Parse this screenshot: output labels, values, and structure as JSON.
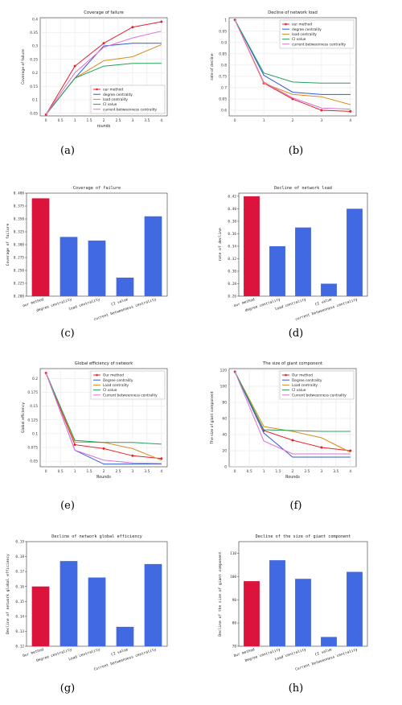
{
  "captions": [
    "(a)",
    "(b)",
    "(c)",
    "(d)",
    "(e)",
    "(f)",
    "(g)",
    "(h)"
  ],
  "chart_data": [
    {
      "id": "a",
      "type": "line",
      "title": "Coverage of failure",
      "xlabel": "rounds",
      "ylabel": "Coverage of failure",
      "x": [
        0,
        1,
        2,
        3,
        4
      ],
      "xticks": [
        "0",
        "0.5",
        "1",
        "1.5",
        "2",
        "2.5",
        "3",
        "3.5",
        "4"
      ],
      "xlim": [
        -0.2,
        4.2
      ],
      "yticks": [
        "0.05",
        "0.1",
        "0.15",
        "0.2",
        "0.25",
        "0.3",
        "0.35",
        "0.4"
      ],
      "ylim": [
        0.04,
        0.405
      ],
      "grid": true,
      "legend_position": "lower-right",
      "series": [
        {
          "name": "our method",
          "values": [
            0.045,
            0.225,
            0.31,
            0.37,
            0.39
          ],
          "color": "#e8222b",
          "marker": true
        },
        {
          "name": "degree centrality",
          "values": [
            0.045,
            0.18,
            0.3,
            0.31,
            0.31
          ],
          "color": "#2e5bd6",
          "marker": false
        },
        {
          "name": "load centrality",
          "values": [
            0.045,
            0.18,
            0.245,
            0.26,
            0.305
          ],
          "color": "#d98c1a",
          "marker": false
        },
        {
          "name": "CI value",
          "values": [
            0.045,
            0.18,
            0.225,
            0.235,
            0.235
          ],
          "color": "#23a05b",
          "marker": false
        },
        {
          "name": "current betweenness centrality",
          "values": [
            0.045,
            0.2,
            0.295,
            0.33,
            0.355
          ],
          "color": "#e06fd6",
          "marker": false
        }
      ]
    },
    {
      "id": "b",
      "type": "line",
      "title": "Decline of network load",
      "xlabel": "",
      "ylabel": "rate of decline",
      "x": [
        0,
        1,
        2,
        3,
        4
      ],
      "xticks": [
        "0",
        "1",
        "2",
        "3",
        "4"
      ],
      "xlim": [
        -0.2,
        4.2
      ],
      "yticks": [
        "0.6",
        "0.65",
        "0.7",
        "0.75",
        "0.8",
        "0.85",
        "0.9",
        "0.95",
        "1"
      ],
      "ylim": [
        0.575,
        1.01
      ],
      "grid": true,
      "legend_position": "top-right",
      "series": [
        {
          "name": "our method",
          "values": [
            1.0,
            0.72,
            0.65,
            0.6,
            0.595
          ],
          "color": "#e8222b",
          "marker": true
        },
        {
          "name": "degree centrality",
          "values": [
            1.0,
            0.755,
            0.68,
            0.67,
            0.67
          ],
          "color": "#2e5bd6",
          "marker": false
        },
        {
          "name": "load centrality",
          "values": [
            1.0,
            0.72,
            0.67,
            0.66,
            0.625
          ],
          "color": "#d98c1a",
          "marker": false
        },
        {
          "name": "CI value",
          "values": [
            1.0,
            0.765,
            0.725,
            0.72,
            0.72
          ],
          "color": "#23a05b",
          "marker": false
        },
        {
          "name": "current betweenness centrality",
          "values": [
            1.0,
            0.725,
            0.655,
            0.61,
            0.605
          ],
          "color": "#e06fd6",
          "marker": false
        }
      ]
    },
    {
      "id": "c",
      "type": "bar",
      "title": "Coverage of failure",
      "xlabel": "",
      "ylabel": "Coverage of failure",
      "categories": [
        "our method",
        "degree centrality",
        "load centrality",
        "CI value",
        "current betweenness centrality"
      ],
      "values": [
        0.39,
        0.315,
        0.308,
        0.236,
        0.355
      ],
      "colors": [
        "#dc143c",
        "#4169e1",
        "#4169e1",
        "#4169e1",
        "#4169e1"
      ],
      "yticks": [
        "0.200",
        "0.225",
        "0.250",
        "0.275",
        "0.300",
        "0.325",
        "0.350",
        "0.375",
        "0.400"
      ],
      "ylim": [
        0.2,
        0.4
      ],
      "grid": false
    },
    {
      "id": "d",
      "type": "bar",
      "title": "Decline of network load",
      "xlabel": "",
      "ylabel": "rate of decline",
      "categories": [
        "our method",
        "degree centrality",
        "load centrality",
        "CI value",
        "current betweenness centrality"
      ],
      "values": [
        0.42,
        0.34,
        0.37,
        0.28,
        0.4
      ],
      "colors": [
        "#dc143c",
        "#4169e1",
        "#4169e1",
        "#4169e1",
        "#4169e1"
      ],
      "yticks": [
        "0.26",
        "0.28",
        "0.30",
        "0.32",
        "0.34",
        "0.36",
        "0.38",
        "0.40",
        "0.42"
      ],
      "ylim": [
        0.26,
        0.425
      ],
      "grid": false
    },
    {
      "id": "e",
      "type": "line",
      "title": "Global efficiency of network",
      "xlabel": "Rounds",
      "ylabel": "Global efficiency",
      "x": [
        0,
        1,
        2,
        3,
        4
      ],
      "xticks": [
        "0",
        "0.5",
        "1",
        "1.5",
        "2",
        "2.5",
        "3",
        "3.5",
        "4"
      ],
      "xlim": [
        -0.2,
        4.2
      ],
      "yticks": [
        "0.05",
        "0.075",
        "0.1",
        "0.125",
        "0.15",
        "0.175",
        "0.2"
      ],
      "ylim": [
        0.04,
        0.218
      ],
      "grid": true,
      "legend_position": "top-right",
      "series": [
        {
          "name": "Our method",
          "values": [
            0.21,
            0.08,
            0.073,
            0.06,
            0.055
          ],
          "color": "#e8222b",
          "marker": true
        },
        {
          "name": "Degree centrality",
          "values": [
            0.21,
            0.07,
            0.045,
            0.045,
            0.045
          ],
          "color": "#2e5bd6",
          "marker": false
        },
        {
          "name": "Load centrality",
          "values": [
            0.21,
            0.085,
            0.084,
            0.073,
            0.052
          ],
          "color": "#d98c1a",
          "marker": false
        },
        {
          "name": "CI value",
          "values": [
            0.21,
            0.088,
            0.084,
            0.084,
            0.081
          ],
          "color": "#23a05b",
          "marker": false
        },
        {
          "name": "Current betweenness centrality",
          "values": [
            0.21,
            0.07,
            0.052,
            0.047,
            0.046
          ],
          "color": "#e06fd6",
          "marker": false
        }
      ]
    },
    {
      "id": "f",
      "type": "line",
      "title": "The size of giant component",
      "xlabel": "Rounds",
      "ylabel": "The size of giant component",
      "x": [
        0,
        1,
        2,
        3,
        4
      ],
      "xticks": [
        "0",
        "0.5",
        "1",
        "1.5",
        "2",
        "2.5",
        "3",
        "3.5",
        "4"
      ],
      "xlim": [
        -0.2,
        4.2
      ],
      "yticks": [
        "0",
        "20",
        "40",
        "60",
        "80",
        "100",
        "120"
      ],
      "ylim": [
        0,
        122
      ],
      "grid": true,
      "legend_position": "top-right",
      "series": [
        {
          "name": "Our method",
          "values": [
            118,
            45,
            33,
            24,
            20
          ],
          "color": "#e8222b",
          "marker": true
        },
        {
          "name": "Degree centrality",
          "values": [
            118,
            42,
            12,
            12,
            12
          ],
          "color": "#2e5bd6",
          "marker": false
        },
        {
          "name": "Load centrality",
          "values": [
            118,
            50,
            44,
            36,
            18
          ],
          "color": "#d98c1a",
          "marker": false
        },
        {
          "name": "CI value",
          "values": [
            118,
            46,
            45,
            44,
            44
          ],
          "color": "#23a05b",
          "marker": false
        },
        {
          "name": "Current betweenness centrality",
          "values": [
            118,
            32,
            16,
            16,
            16
          ],
          "color": "#e06fd6",
          "marker": false
        }
      ]
    },
    {
      "id": "g",
      "type": "bar",
      "title": "Decline of network global efficiency",
      "xlabel": "",
      "ylabel": "Decline of network global efficiency",
      "categories": [
        "Our method",
        "Degree centrality",
        "Load centrality",
        "CI value",
        "Current betweenness centrality"
      ],
      "values": [
        0.16,
        0.177,
        0.166,
        0.133,
        0.175
      ],
      "colors": [
        "#dc143c",
        "#4169e1",
        "#4169e1",
        "#4169e1",
        "#4169e1"
      ],
      "yticks": [
        "0.12",
        "0.13",
        "0.14",
        "0.15",
        "0.16",
        "0.17",
        "0.18",
        "0.19"
      ],
      "ylim": [
        0.12,
        0.19
      ],
      "grid": false
    },
    {
      "id": "h",
      "type": "bar",
      "title": "Decline of the size of giant component",
      "xlabel": "",
      "ylabel": "Decline of the size of giant component",
      "categories": [
        "Our method",
        "Degree centrality",
        "Load centrality",
        "CI value",
        "Current betweenness centrality"
      ],
      "values": [
        98,
        107,
        99,
        74,
        102
      ],
      "colors": [
        "#dc143c",
        "#4169e1",
        "#4169e1",
        "#4169e1",
        "#4169e1"
      ],
      "yticks": [
        "70",
        "80",
        "90",
        "100",
        "110"
      ],
      "ylim": [
        70,
        115
      ],
      "grid": false
    }
  ]
}
